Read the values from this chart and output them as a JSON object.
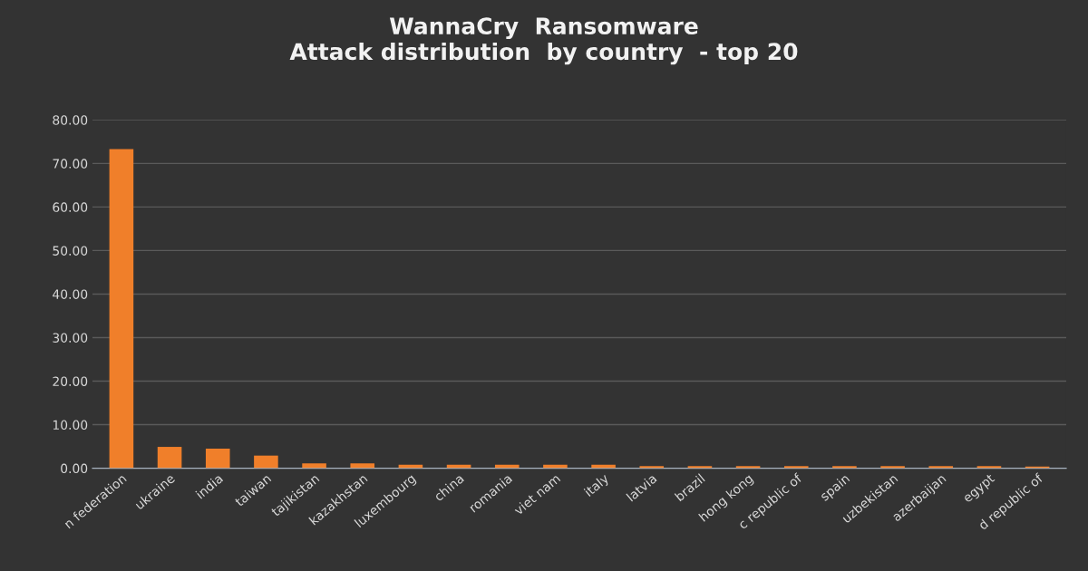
{
  "chart_data": {
    "type": "bar",
    "title": "WannaCry  Ransomware\nAttack distribution  by country  - top 20",
    "categories": [
      "n federation",
      "ukraine",
      "india",
      "taiwan",
      "tajikistan",
      "kazakhstan",
      "luxembourg",
      "china",
      "romania",
      "viet nam",
      "italy",
      "latvia",
      "brazil",
      "hong kong",
      "c republic of",
      "spain",
      "uzbekistan",
      "azerbaijan",
      "egypt",
      "d republic of"
    ],
    "values": [
      73.3,
      4.9,
      4.5,
      2.9,
      1.1,
      1.1,
      0.8,
      0.8,
      0.8,
      0.8,
      0.8,
      0.5,
      0.5,
      0.5,
      0.5,
      0.5,
      0.5,
      0.5,
      0.5,
      0.4
    ],
    "color": "#f07f2a",
    "ylim": [
      0,
      80
    ],
    "yticks": [
      {
        "value": 0,
        "label": "0.00"
      },
      {
        "value": 10,
        "label": "10.00"
      },
      {
        "value": 20,
        "label": "20.00"
      },
      {
        "value": 30,
        "label": "30.00"
      },
      {
        "value": 40,
        "label": "40.00"
      },
      {
        "value": 50,
        "label": "50.00"
      },
      {
        "value": 60,
        "label": "60.00"
      },
      {
        "value": 70,
        "label": "70.00"
      },
      {
        "value": 80,
        "label": "80.00"
      }
    ],
    "grid": "y",
    "legend": false
  }
}
